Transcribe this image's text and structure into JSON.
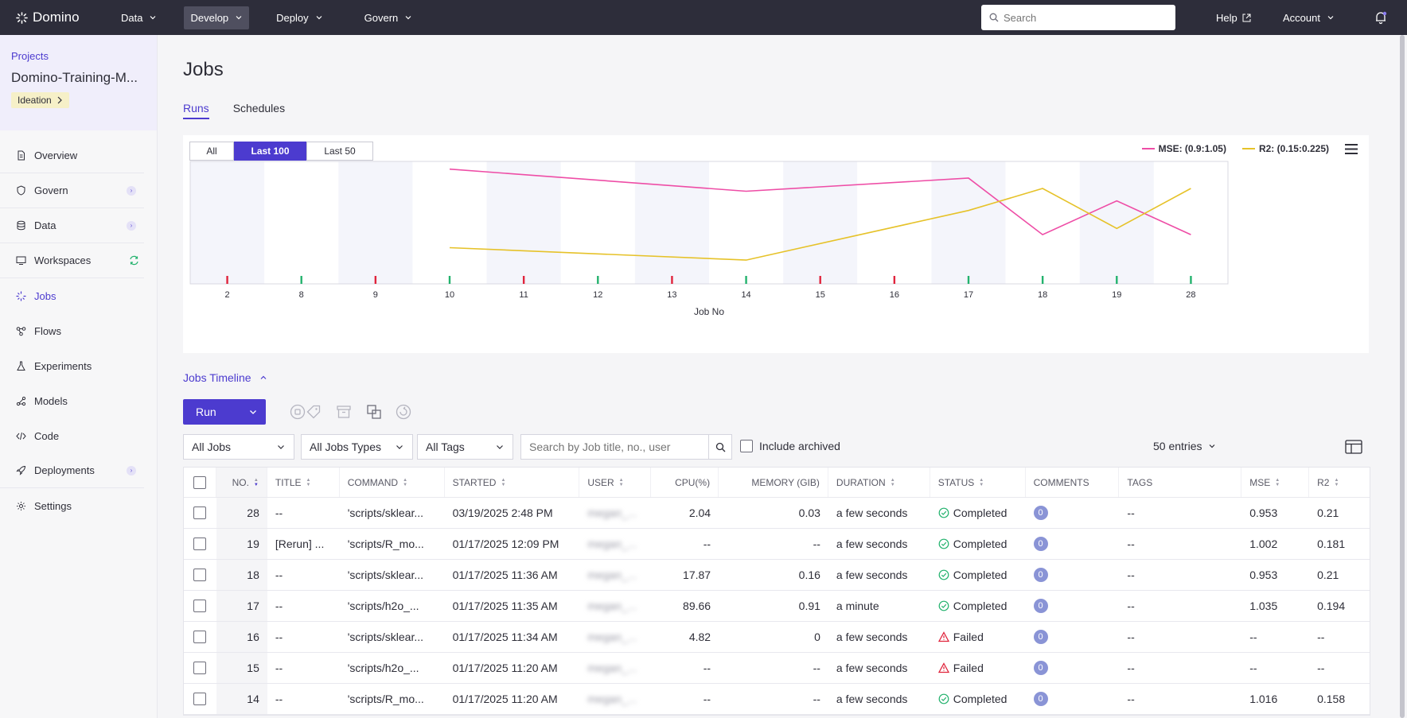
{
  "topbar": {
    "logo": "Domino",
    "nav": [
      {
        "label": "Data"
      },
      {
        "label": "Develop"
      },
      {
        "label": "Deploy"
      },
      {
        "label": "Govern"
      }
    ],
    "search_placeholder": "Search",
    "help": "Help",
    "account": "Account"
  },
  "sidebar": {
    "projects_link": "Projects",
    "project_name": "Domino-Training-M...",
    "stage": "Ideation",
    "items": [
      {
        "label": "Overview",
        "icon": "document-icon"
      },
      {
        "label": "Govern",
        "icon": "shield-icon"
      },
      {
        "label": "Data",
        "icon": "database-icon"
      },
      {
        "label": "Workspaces",
        "icon": "monitor-icon"
      },
      {
        "label": "Jobs",
        "icon": "jobs-icon"
      },
      {
        "label": "Flows",
        "icon": "flows-icon"
      },
      {
        "label": "Experiments",
        "icon": "flask-icon"
      },
      {
        "label": "Models",
        "icon": "models-icon"
      },
      {
        "label": "Code",
        "icon": "code-icon"
      },
      {
        "label": "Deployments",
        "icon": "rocket-icon"
      },
      {
        "label": "Settings",
        "icon": "gear-icon"
      }
    ]
  },
  "page": {
    "title": "Jobs",
    "tabs": [
      {
        "label": "Runs"
      },
      {
        "label": "Schedules"
      }
    ],
    "timeline_label": "Jobs Timeline",
    "run_button": "Run"
  },
  "chart_controls": {
    "ranges": [
      "All",
      "Last 100",
      "Last 50"
    ],
    "active": "Last 100"
  },
  "chart_data": {
    "type": "line",
    "xlabel": "Job No",
    "categories": [
      "2",
      "8",
      "9",
      "10",
      "11",
      "12",
      "13",
      "14",
      "15",
      "16",
      "17",
      "18",
      "19",
      "28"
    ],
    "status": [
      "failed",
      "completed",
      "failed",
      "completed",
      "failed",
      "completed",
      "failed",
      "completed",
      "failed",
      "failed",
      "completed",
      "completed",
      "completed",
      "completed"
    ],
    "series": [
      {
        "name": "MSE: (0.9:1.05)",
        "color": "#ee4da6",
        "range": [
          0.9,
          1.05
        ],
        "values": [
          null,
          null,
          null,
          1.048,
          null,
          null,
          null,
          1.016,
          null,
          null,
          1.035,
          0.953,
          1.002,
          0.953
        ]
      },
      {
        "name": "R2: (0.15:0.225)",
        "color": "#e6c229",
        "range": [
          0.15,
          0.225
        ],
        "values": [
          null,
          null,
          null,
          0.167,
          null,
          null,
          null,
          0.158,
          null,
          null,
          0.194,
          0.21,
          0.181,
          0.21
        ]
      }
    ],
    "status_colors": {
      "failed": "#e0243c",
      "completed": "#23b26d"
    }
  },
  "filters": {
    "jobs": "All Jobs",
    "types": "All Jobs Types",
    "tags": "All Tags",
    "search_placeholder": "Search by Job title, no., user",
    "include_archived": "Include archived",
    "entries": "50 entries"
  },
  "table": {
    "headers": {
      "no": "NO.",
      "title": "TITLE",
      "command": "COMMAND",
      "started": "STARTED",
      "user": "USER",
      "cpu": "CPU(%)",
      "memory": "MEMORY (GIB)",
      "duration": "DURATION",
      "status": "STATUS",
      "comments": "COMMENTS",
      "tags": "TAGS",
      "mse": "MSE",
      "r2": "R2"
    },
    "rows": [
      {
        "no": "28",
        "title": "--",
        "command": "'scripts/sklear...",
        "started": "03/19/2025 2:48 PM",
        "user": "megan_...",
        "cpu": "2.04",
        "memory": "0.03",
        "duration": "a few seconds",
        "status": "Completed",
        "comments": "0",
        "tags": "--",
        "mse": "0.953",
        "r2": "0.21"
      },
      {
        "no": "19",
        "title": "[Rerun] ...",
        "command": "'scripts/R_mo...",
        "started": "01/17/2025 12:09 PM",
        "user": "megan_...",
        "cpu": "--",
        "memory": "--",
        "duration": "a few seconds",
        "status": "Completed",
        "comments": "0",
        "tags": "--",
        "mse": "1.002",
        "r2": "0.181"
      },
      {
        "no": "18",
        "title": "--",
        "command": "'scripts/sklear...",
        "started": "01/17/2025 11:36 AM",
        "user": "megan_...",
        "cpu": "17.87",
        "memory": "0.16",
        "duration": "a few seconds",
        "status": "Completed",
        "comments": "0",
        "tags": "--",
        "mse": "0.953",
        "r2": "0.21"
      },
      {
        "no": "17",
        "title": "--",
        "command": "'scripts/h2o_...",
        "started": "01/17/2025 11:35 AM",
        "user": "megan_...",
        "cpu": "89.66",
        "memory": "0.91",
        "duration": "a minute",
        "status": "Completed",
        "comments": "0",
        "tags": "--",
        "mse": "1.035",
        "r2": "0.194"
      },
      {
        "no": "16",
        "title": "--",
        "command": "'scripts/sklear...",
        "started": "01/17/2025 11:34 AM",
        "user": "megan_...",
        "cpu": "4.82",
        "memory": "0",
        "duration": "a few seconds",
        "status": "Failed",
        "comments": "0",
        "tags": "--",
        "mse": "--",
        "r2": "--"
      },
      {
        "no": "15",
        "title": "--",
        "command": "'scripts/h2o_...",
        "started": "01/17/2025 11:20 AM",
        "user": "megan_...",
        "cpu": "--",
        "memory": "--",
        "duration": "a few seconds",
        "status": "Failed",
        "comments": "0",
        "tags": "--",
        "mse": "--",
        "r2": "--"
      },
      {
        "no": "14",
        "title": "--",
        "command": "'scripts/R_mo...",
        "started": "01/17/2025 11:20 AM",
        "user": "megan_...",
        "cpu": "--",
        "memory": "--",
        "duration": "a few seconds",
        "status": "Completed",
        "comments": "0",
        "tags": "--",
        "mse": "1.016",
        "r2": "0.158"
      }
    ]
  },
  "colors": {
    "accent": "#4c3bcf",
    "completed": "#23b26d",
    "failed": "#e0243c"
  }
}
